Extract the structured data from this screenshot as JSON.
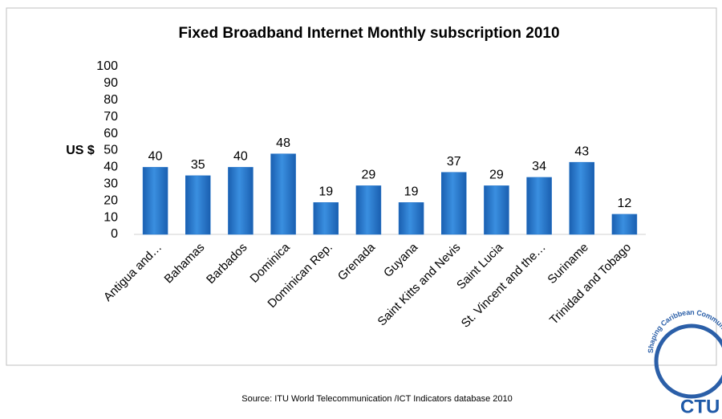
{
  "chart_data": {
    "type": "bar",
    "title": "Fixed Broadband Internet Monthly subscription 2010",
    "ylabel": "US $",
    "categories": [
      "Antigua and…",
      "Bahamas",
      "Barbados",
      "Dominica",
      "Dominican Rep.",
      "Grenada",
      "Guyana",
      "Saint Kitts and Nevis",
      "Saint Lucia",
      "St. Vincent and the…",
      "Suriname",
      "Trinidad and Tobago"
    ],
    "values": [
      40,
      35,
      40,
      48,
      19,
      29,
      19,
      37,
      29,
      34,
      43,
      12
    ],
    "color": "#1f70c8",
    "ylim": [
      0,
      100
    ],
    "yticks": [
      0,
      10,
      20,
      30,
      40,
      50,
      60,
      70,
      80,
      90,
      100
    ],
    "grid": false
  },
  "source": "Source:  ITU World Telecommunication /ICT Indicators database 2010",
  "logo": {
    "arc_text": "Shaping Caribbean Communic",
    "name": "CTU"
  }
}
